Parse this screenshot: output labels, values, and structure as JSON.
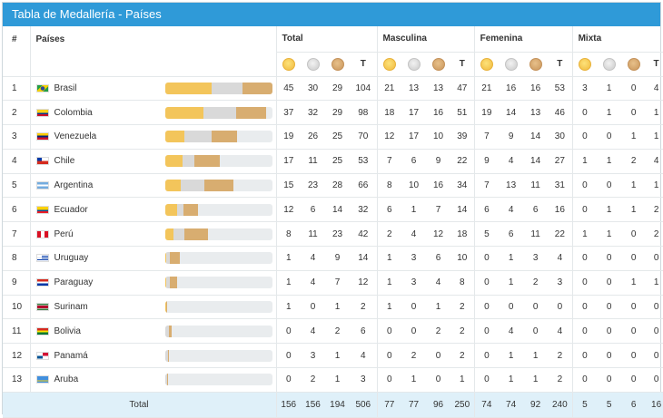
{
  "title": "Tabla de Medallería - Países",
  "header": {
    "rank": "#",
    "countries": "Países",
    "groups": [
      "Total",
      "Masculina",
      "Femenina",
      "Mixta"
    ],
    "t_label": "T"
  },
  "colors": {
    "gold": "#f3c55b",
    "silver": "#d9d9d9",
    "bronze": "#d8ad70",
    "header": "#2f9ad8",
    "total_row": "#dff0f9"
  },
  "bar_scale_max": 104,
  "rows": [
    {
      "rank": "1",
      "name": "Brasil",
      "flag": "brazil-flag",
      "total": [
        45,
        30,
        29,
        104
      ],
      "masc": [
        21,
        13,
        13,
        47
      ],
      "fem": [
        21,
        16,
        16,
        53
      ],
      "mixta": [
        3,
        1,
        0,
        4
      ]
    },
    {
      "rank": "2",
      "name": "Colombia",
      "flag": "colombia-flag",
      "total": [
        37,
        32,
        29,
        98
      ],
      "masc": [
        18,
        17,
        16,
        51
      ],
      "fem": [
        19,
        14,
        13,
        46
      ],
      "mixta": [
        0,
        1,
        0,
        1
      ]
    },
    {
      "rank": "3",
      "name": "Venezuela",
      "flag": "venezuela-flag",
      "total": [
        19,
        26,
        25,
        70
      ],
      "masc": [
        12,
        17,
        10,
        39
      ],
      "fem": [
        7,
        9,
        14,
        30
      ],
      "mixta": [
        0,
        0,
        1,
        1
      ]
    },
    {
      "rank": "4",
      "name": "Chile",
      "flag": "chile-flag",
      "total": [
        17,
        11,
        25,
        53
      ],
      "masc": [
        7,
        6,
        9,
        22
      ],
      "fem": [
        9,
        4,
        14,
        27
      ],
      "mixta": [
        1,
        1,
        2,
        4
      ]
    },
    {
      "rank": "5",
      "name": "Argentina",
      "flag": "argentina-flag",
      "total": [
        15,
        23,
        28,
        66
      ],
      "masc": [
        8,
        10,
        16,
        34
      ],
      "fem": [
        7,
        13,
        11,
        31
      ],
      "mixta": [
        0,
        0,
        1,
        1
      ]
    },
    {
      "rank": "6",
      "name": "Ecuador",
      "flag": "ecuador-flag",
      "total": [
        12,
        6,
        14,
        32
      ],
      "masc": [
        6,
        1,
        7,
        14
      ],
      "fem": [
        6,
        4,
        6,
        16
      ],
      "mixta": [
        0,
        1,
        1,
        2
      ]
    },
    {
      "rank": "7",
      "name": "Perú",
      "flag": "peru-flag",
      "total": [
        8,
        11,
        23,
        42
      ],
      "masc": [
        2,
        4,
        12,
        18
      ],
      "fem": [
        5,
        6,
        11,
        22
      ],
      "mixta": [
        1,
        1,
        0,
        2
      ]
    },
    {
      "rank": "8",
      "name": "Uruguay",
      "flag": "uruguay-flag",
      "total": [
        1,
        4,
        9,
        14
      ],
      "masc": [
        1,
        3,
        6,
        10
      ],
      "fem": [
        0,
        1,
        3,
        4
      ],
      "mixta": [
        0,
        0,
        0,
        0
      ]
    },
    {
      "rank": "9",
      "name": "Paraguay",
      "flag": "paraguay-flag",
      "total": [
        1,
        4,
        7,
        12
      ],
      "masc": [
        1,
        3,
        4,
        8
      ],
      "fem": [
        0,
        1,
        2,
        3
      ],
      "mixta": [
        0,
        0,
        1,
        1
      ]
    },
    {
      "rank": "10",
      "name": "Surinam",
      "flag": "suriname-flag",
      "total": [
        1,
        0,
        1,
        2
      ],
      "masc": [
        1,
        0,
        1,
        2
      ],
      "fem": [
        0,
        0,
        0,
        0
      ],
      "mixta": [
        0,
        0,
        0,
        0
      ]
    },
    {
      "rank": "11",
      "name": "Bolivia",
      "flag": "bolivia-flag",
      "total": [
        0,
        4,
        2,
        6
      ],
      "masc": [
        0,
        0,
        2,
        2
      ],
      "fem": [
        0,
        4,
        0,
        4
      ],
      "mixta": [
        0,
        0,
        0,
        0
      ]
    },
    {
      "rank": "12",
      "name": "Panamá",
      "flag": "panama-flag",
      "total": [
        0,
        3,
        1,
        4
      ],
      "masc": [
        0,
        2,
        0,
        2
      ],
      "fem": [
        0,
        1,
        1,
        2
      ],
      "mixta": [
        0,
        0,
        0,
        0
      ]
    },
    {
      "rank": "13",
      "name": "Aruba",
      "flag": "aruba-flag",
      "total": [
        0,
        2,
        1,
        3
      ],
      "masc": [
        0,
        1,
        0,
        1
      ],
      "fem": [
        0,
        1,
        1,
        2
      ],
      "mixta": [
        0,
        0,
        0,
        0
      ]
    }
  ],
  "totals": {
    "label": "Total",
    "total": [
      156,
      156,
      194,
      506
    ],
    "masc": [
      77,
      77,
      96,
      250
    ],
    "fem": [
      74,
      74,
      92,
      240
    ],
    "mixta": [
      5,
      5,
      6,
      16
    ]
  }
}
